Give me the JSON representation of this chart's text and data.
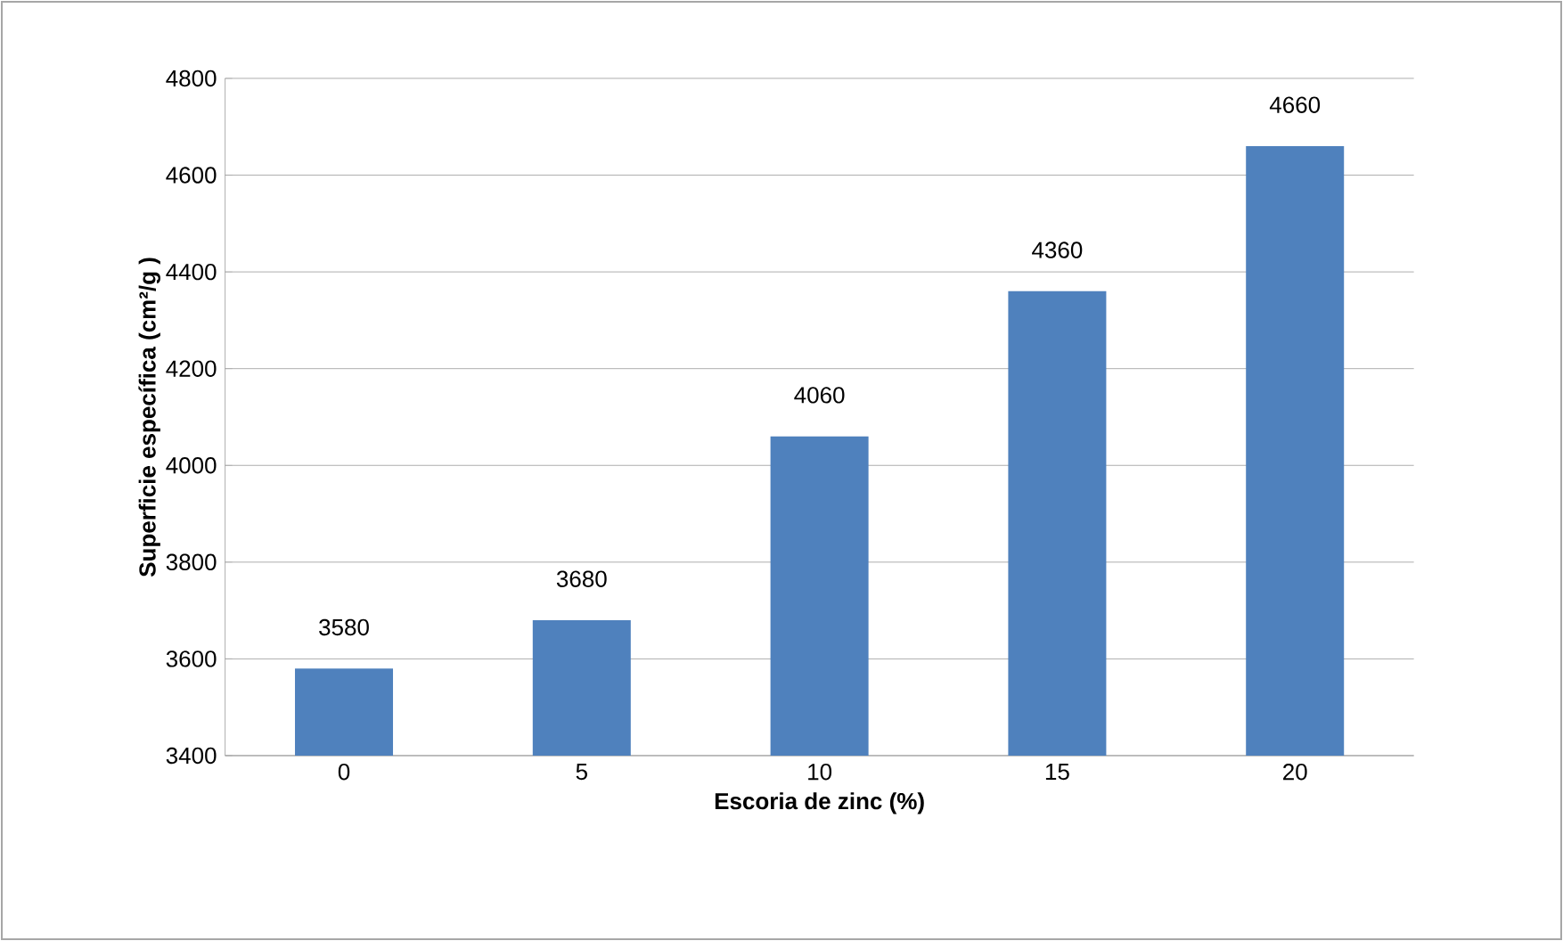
{
  "chart_data": {
    "type": "bar",
    "xlabel": "Escoria de zinc (%)",
    "ylabel": "Superficie específica (cm²/g )",
    "categories": [
      "0",
      "5",
      "10",
      "15",
      "20"
    ],
    "values": [
      3580,
      3680,
      4060,
      4360,
      4660
    ],
    "color": "#4f81bd",
    "ylim": [
      3400,
      4800
    ],
    "yticks": [
      3400,
      3600,
      3800,
      4000,
      4200,
      4400,
      4600,
      4800
    ],
    "grid": "y",
    "data_labels": true
  }
}
